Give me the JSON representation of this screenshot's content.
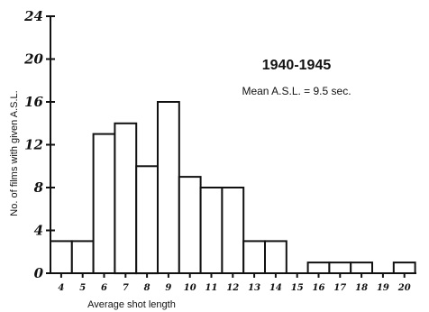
{
  "chart_data": {
    "type": "bar",
    "title": "1940-1945",
    "subtitle": "Mean A.S.L. = 9.5 sec.",
    "xlabel": "Average shot length",
    "ylabel": "No. of films with given A.S.L.",
    "categories": [
      "4",
      "5",
      "6",
      "7",
      "8",
      "9",
      "10",
      "11",
      "12",
      "13",
      "14",
      "15",
      "16",
      "17",
      "18",
      "19",
      "20"
    ],
    "values": [
      3,
      3,
      13,
      14,
      10,
      16,
      9,
      8,
      8,
      3,
      3,
      0,
      1,
      1,
      1,
      0,
      1
    ],
    "ylim": [
      0,
      24
    ],
    "yticks": [
      "0",
      "4",
      "8",
      "12",
      "16",
      "20",
      "24"
    ],
    "grid": false
  }
}
